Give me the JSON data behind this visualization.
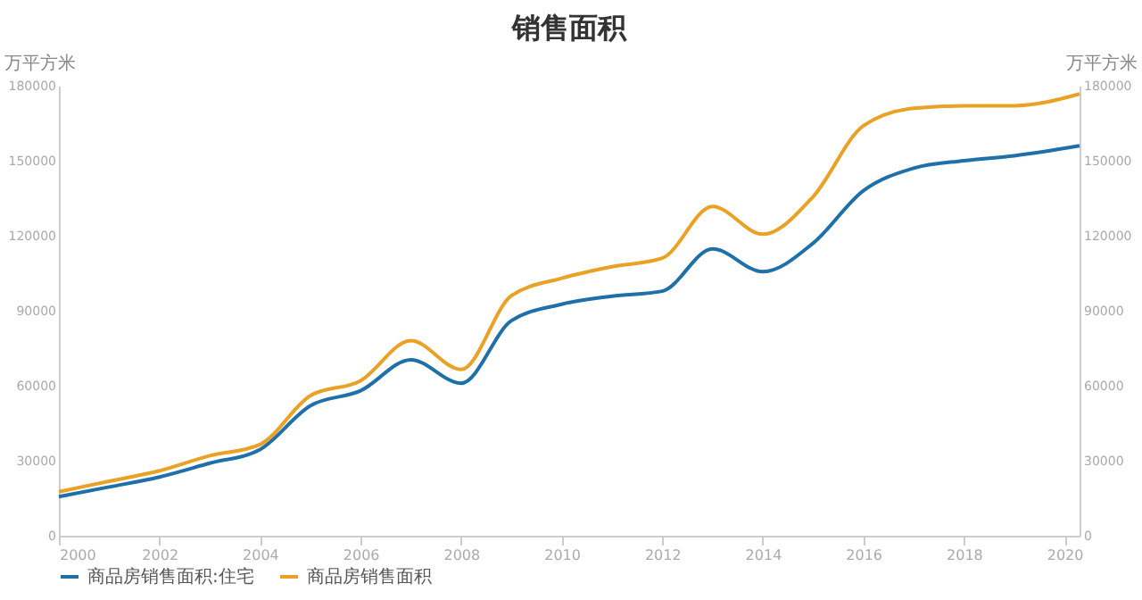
{
  "chart_data": {
    "type": "line",
    "title": "销售面积",
    "ylabel": "万平方米",
    "y2label": "万平方米",
    "x": [
      2000,
      2001,
      2002,
      2003,
      2004,
      2005,
      2006,
      2007,
      2008,
      2009,
      2010,
      2011,
      2012,
      2013,
      2014,
      2015,
      2016,
      2017,
      2018,
      2019,
      2020.3
    ],
    "xlim": [
      2000,
      2020.3
    ],
    "xticks": [
      2000,
      2002,
      2004,
      2006,
      2008,
      2010,
      2012,
      2014,
      2016,
      2018,
      2020
    ],
    "ylim": [
      0,
      180000
    ],
    "yticks": [
      0,
      30000,
      60000,
      90000,
      120000,
      150000,
      180000
    ],
    "y2lim": [
      0,
      180000
    ],
    "y2ticks": [
      0,
      30000,
      60000,
      90000,
      120000,
      150000,
      180000
    ],
    "series": [
      {
        "name": "商品房销售面积:住宅",
        "color": "#1f6fa8",
        "values": [
          15600,
          19500,
          23500,
          29000,
          34500,
          52000,
          58000,
          70400,
          61000,
          86000,
          92600,
          95800,
          97800,
          114700,
          105600,
          117000,
          138000,
          147000,
          150000,
          152000,
          156000
        ]
      },
      {
        "name": "商品房销售面积",
        "color": "#e9a126",
        "axis": "y2",
        "values": [
          17600,
          21800,
          26000,
          32000,
          36500,
          56000,
          62000,
          78000,
          66500,
          96000,
          103000,
          107600,
          111000,
          131700,
          120600,
          135600,
          164000,
          171000,
          172000,
          172000,
          176700
        ]
      }
    ],
    "grid": false,
    "legend": "bottom",
    "marker": "none",
    "line_style": "solid"
  }
}
